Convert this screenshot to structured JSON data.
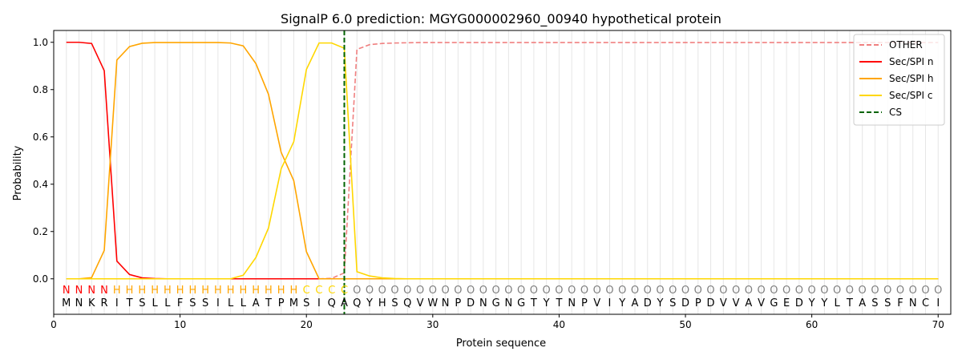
{
  "chart_data": {
    "type": "line",
    "title": "SignalP 6.0 prediction: MGYG000002960_00940 hypothetical protein",
    "xlabel": "Protein sequence",
    "ylabel": "Probability",
    "xlim": [
      0,
      71
    ],
    "ylim": [
      -0.15,
      1.05
    ],
    "x_ticks": [
      0,
      10,
      20,
      30,
      40,
      50,
      60,
      70
    ],
    "y_ticks": [
      0.0,
      0.2,
      0.4,
      0.6,
      0.8,
      1.0
    ],
    "x_tick_labels": [
      "0",
      "10",
      "20",
      "30",
      "40",
      "50",
      "60",
      "70"
    ],
    "y_tick_labels": [
      "0.0",
      "0.2",
      "0.4",
      "0.6",
      "0.8",
      "1.0"
    ],
    "grid": "vertical lines at each residue",
    "legend_position": "top-right",
    "sequence": [
      "M",
      "N",
      "K",
      "R",
      "I",
      "T",
      "S",
      "L",
      "L",
      "F",
      "S",
      "S",
      "I",
      "L",
      "L",
      "A",
      "T",
      "P",
      "M",
      "S",
      "I",
      "Q",
      "A",
      "Q",
      "Y",
      "H",
      "S",
      "Q",
      "V",
      "W",
      "N",
      "P",
      "D",
      "N",
      "G",
      "N",
      "G",
      "T",
      "Y",
      "T",
      "N",
      "P",
      "V",
      "I",
      "Y",
      "A",
      "D",
      "Y",
      "S",
      "D",
      "P",
      "D",
      "V",
      "V",
      "A",
      "V",
      "G",
      "E",
      "D",
      "Y",
      "Y",
      "L",
      "T",
      "A",
      "S",
      "S",
      "F",
      "N",
      "C",
      "I"
    ],
    "labels": [
      "N",
      "N",
      "N",
      "N",
      "H",
      "H",
      "H",
      "H",
      "H",
      "H",
      "H",
      "H",
      "H",
      "H",
      "H",
      "H",
      "H",
      "H",
      "H",
      "C",
      "C",
      "C",
      "C",
      "O",
      "O",
      "O",
      "O",
      "O",
      "O",
      "O",
      "O",
      "O",
      "O",
      "O",
      "O",
      "O",
      "O",
      "O",
      "O",
      "O",
      "O",
      "O",
      "O",
      "O",
      "O",
      "O",
      "O",
      "O",
      "O",
      "O",
      "O",
      "O",
      "O",
      "O",
      "O",
      "O",
      "O",
      "O",
      "O",
      "O",
      "O",
      "O",
      "O",
      "O",
      "O",
      "O",
      "O",
      "O",
      "O",
      "O"
    ],
    "label_colors": {
      "N": "#ff0000",
      "H": "#ffa500",
      "C": "#ffd700",
      "O": "#808080"
    },
    "series": [
      {
        "name": "OTHER",
        "color": "#f08080",
        "style": "dashed",
        "values": [
          0,
          0,
          0,
          0,
          0,
          0,
          0,
          0,
          0,
          0,
          0,
          0,
          0,
          0,
          0,
          0,
          0,
          0,
          0,
          0,
          0,
          0.002,
          0.025,
          0.97,
          0.99,
          0.995,
          0.997,
          0.998,
          0.999,
          0.999,
          0.999,
          0.999,
          0.999,
          0.999,
          0.999,
          0.999,
          0.999,
          0.999,
          0.999,
          0.999,
          0.999,
          0.999,
          0.999,
          0.999,
          0.999,
          0.999,
          0.999,
          0.999,
          0.999,
          0.999,
          0.999,
          0.999,
          0.999,
          0.999,
          0.999,
          0.999,
          0.999,
          0.999,
          0.999,
          0.999,
          0.999,
          0.999,
          0.999,
          0.999,
          0.999,
          0.999,
          0.999,
          0.999,
          0.999,
          0.999
        ]
      },
      {
        "name": "Sec/SPI n",
        "color": "#ff0000",
        "style": "solid",
        "values": [
          1.0,
          1.0,
          0.995,
          0.88,
          0.075,
          0.018,
          0.004,
          0.001,
          0,
          0,
          0,
          0,
          0,
          0,
          0,
          0,
          0,
          0,
          0,
          0,
          0,
          0,
          0,
          0,
          0,
          0,
          0,
          0,
          0,
          0,
          0,
          0,
          0,
          0,
          0,
          0,
          0,
          0,
          0,
          0,
          0,
          0,
          0,
          0,
          0,
          0,
          0,
          0,
          0,
          0,
          0,
          0,
          0,
          0,
          0,
          0,
          0,
          0,
          0,
          0,
          0,
          0,
          0,
          0,
          0,
          0,
          0,
          0,
          0,
          0
        ]
      },
      {
        "name": "Sec/SPI h",
        "color": "#ffa500",
        "style": "solid",
        "values": [
          0,
          0,
          0.005,
          0.12,
          0.925,
          0.982,
          0.996,
          0.999,
          0.999,
          0.999,
          0.999,
          0.999,
          0.999,
          0.997,
          0.985,
          0.91,
          0.78,
          0.535,
          0.415,
          0.115,
          0,
          0,
          0,
          0,
          0,
          0,
          0,
          0,
          0,
          0,
          0,
          0,
          0,
          0,
          0,
          0,
          0,
          0,
          0,
          0,
          0,
          0,
          0,
          0,
          0,
          0,
          0,
          0,
          0,
          0,
          0,
          0,
          0,
          0,
          0,
          0,
          0,
          0,
          0,
          0,
          0,
          0,
          0,
          0,
          0,
          0,
          0,
          0,
          0,
          0
        ]
      },
      {
        "name": "Sec/SPI c",
        "color": "#ffd700",
        "style": "solid",
        "values": [
          0,
          0,
          0,
          0,
          0,
          0,
          0,
          0,
          0,
          0,
          0,
          0,
          0,
          0,
          0.015,
          0.09,
          0.215,
          0.465,
          0.58,
          0.885,
          0.997,
          0.997,
          0.975,
          0.03,
          0.012,
          0.004,
          0.001,
          0,
          0,
          0,
          0,
          0,
          0,
          0,
          0,
          0,
          0,
          0,
          0,
          0,
          0,
          0,
          0,
          0,
          0,
          0,
          0,
          0,
          0,
          0,
          0,
          0,
          0,
          0,
          0,
          0,
          0,
          0,
          0,
          0,
          0,
          0,
          0,
          0,
          0,
          0,
          0,
          0,
          0,
          0
        ]
      },
      {
        "name": "CS",
        "color": "#006400",
        "style": "dashed",
        "x": 23
      }
    ]
  }
}
